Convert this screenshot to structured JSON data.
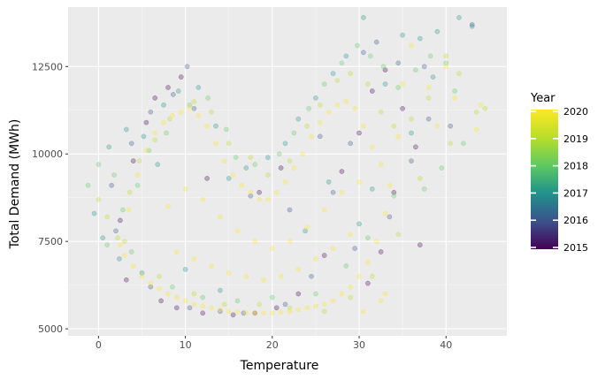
{
  "chart_data": {
    "type": "scatter",
    "title": "",
    "xlabel": "Temperature",
    "ylabel": "Total Demand (MWh)",
    "xlim": [
      -3.5,
      47
    ],
    "ylim": [
      4800,
      14200
    ],
    "x_ticks": [
      0,
      10,
      20,
      30,
      40
    ],
    "x_tick_labels": [
      "0",
      "10",
      "20",
      "30",
      "40"
    ],
    "y_ticks": [
      5000,
      7500,
      10000,
      12500
    ],
    "y_tick_labels": [
      "5000",
      "7500",
      "10000",
      "12500"
    ],
    "grid": true,
    "point_alpha": 0.3,
    "legend": {
      "title": "Year",
      "placement": "right",
      "type": "colorbar",
      "range": [
        2015,
        2020
      ],
      "ticks": [
        "2015",
        "2016",
        "2017",
        "2018",
        "2019",
        "2020"
      ],
      "colors": [
        "#440154",
        "#3b528b",
        "#21918c",
        "#5ec962",
        "#b8de29",
        "#fde725"
      ]
    },
    "series": [
      {
        "year": 2015,
        "color": "#440154",
        "points": [
          [
            3.2,
            6400
          ],
          [
            4.0,
            9800
          ],
          [
            5.5,
            10900
          ],
          [
            6.5,
            11600
          ],
          [
            8.0,
            11900
          ],
          [
            9.5,
            12200
          ],
          [
            7.2,
            5800
          ],
          [
            9.0,
            5600
          ],
          [
            12.0,
            5450
          ],
          [
            15.5,
            5400
          ],
          [
            18.0,
            5450
          ],
          [
            20.5,
            5600
          ],
          [
            23.0,
            6000
          ],
          [
            26.0,
            7100
          ],
          [
            28.0,
            9500
          ],
          [
            30.0,
            10600
          ],
          [
            31.5,
            11800
          ],
          [
            33.0,
            12400
          ],
          [
            35.0,
            11300
          ],
          [
            36.5,
            10200
          ],
          [
            34.0,
            8900
          ],
          [
            32.5,
            7200
          ],
          [
            31.0,
            6300
          ],
          [
            12.5,
            9300
          ],
          [
            18.5,
            8900
          ],
          [
            21.0,
            9600
          ],
          [
            2.5,
            8100
          ],
          [
            37.0,
            7400
          ]
        ]
      },
      {
        "year": 2016,
        "color": "#3b528b",
        "points": [
          [
            2.0,
            7800
          ],
          [
            3.8,
            10300
          ],
          [
            6.0,
            11200
          ],
          [
            8.6,
            11700
          ],
          [
            10.2,
            12500
          ],
          [
            11.0,
            11300
          ],
          [
            6.0,
            6200
          ],
          [
            10.5,
            5600
          ],
          [
            14.0,
            5500
          ],
          [
            16.7,
            5450
          ],
          [
            21.5,
            5700
          ],
          [
            24.5,
            6500
          ],
          [
            27.0,
            8900
          ],
          [
            29.0,
            10300
          ],
          [
            30.5,
            12900
          ],
          [
            32.0,
            13200
          ],
          [
            34.5,
            12600
          ],
          [
            37.5,
            12500
          ],
          [
            38.0,
            11000
          ],
          [
            36.0,
            9800
          ],
          [
            33.5,
            8200
          ],
          [
            17.5,
            8800
          ],
          [
            22.0,
            8400
          ],
          [
            25.5,
            10500
          ],
          [
            29.5,
            7300
          ],
          [
            1.5,
            9100
          ],
          [
            43.0,
            13700
          ],
          [
            40.5,
            10800
          ]
        ]
      },
      {
        "year": 2017,
        "color": "#21918c",
        "points": [
          [
            -0.5,
            8300
          ],
          [
            0.5,
            7600
          ],
          [
            1.2,
            10200
          ],
          [
            3.2,
            10700
          ],
          [
            5.2,
            10500
          ],
          [
            7.5,
            11400
          ],
          [
            9.2,
            11800
          ],
          [
            11.5,
            11900
          ],
          [
            13.5,
            10800
          ],
          [
            6.8,
            9700
          ],
          [
            15.0,
            9300
          ],
          [
            17.0,
            9600
          ],
          [
            19.5,
            9900
          ],
          [
            21.5,
            10300
          ],
          [
            23.0,
            11000
          ],
          [
            25.0,
            11600
          ],
          [
            27.0,
            12300
          ],
          [
            28.5,
            12800
          ],
          [
            30.5,
            13900
          ],
          [
            33.0,
            12000
          ],
          [
            35.0,
            13400
          ],
          [
            37.0,
            13300
          ],
          [
            39.0,
            13500
          ],
          [
            41.5,
            13900
          ],
          [
            43.0,
            13650
          ],
          [
            38.5,
            12200
          ],
          [
            36.0,
            10600
          ],
          [
            31.5,
            9000
          ],
          [
            30.0,
            8000
          ],
          [
            26.5,
            9200
          ],
          [
            23.8,
            7800
          ],
          [
            14.0,
            6100
          ],
          [
            10.0,
            6700
          ],
          [
            5.0,
            6600
          ],
          [
            2.4,
            7000
          ]
        ]
      },
      {
        "year": 2018,
        "color": "#5ec962",
        "points": [
          [
            -1.2,
            9100
          ],
          [
            0.0,
            9700
          ],
          [
            1.8,
            9400
          ],
          [
            2.8,
            8400
          ],
          [
            4.5,
            9100
          ],
          [
            5.8,
            10100
          ],
          [
            7.8,
            10600
          ],
          [
            10.5,
            11400
          ],
          [
            12.6,
            11600
          ],
          [
            14.7,
            10700
          ],
          [
            15.8,
            9900
          ],
          [
            18.0,
            9700
          ],
          [
            20.8,
            10000
          ],
          [
            22.5,
            10600
          ],
          [
            24.2,
            11300
          ],
          [
            26.0,
            12000
          ],
          [
            28.0,
            12600
          ],
          [
            29.8,
            13100
          ],
          [
            31.3,
            12800
          ],
          [
            32.8,
            12500
          ],
          [
            34.5,
            11900
          ],
          [
            36.5,
            12400
          ],
          [
            38.2,
            12800
          ],
          [
            40.0,
            12600
          ],
          [
            41.0,
            11800
          ],
          [
            42.0,
            10300
          ],
          [
            39.5,
            9600
          ],
          [
            37.5,
            9000
          ],
          [
            34.0,
            8800
          ],
          [
            31.0,
            7600
          ],
          [
            28.5,
            6800
          ],
          [
            25.0,
            6000
          ],
          [
            20.0,
            5900
          ],
          [
            16.0,
            5800
          ],
          [
            12.0,
            5900
          ],
          [
            8.5,
            6200
          ],
          [
            3.8,
            7200
          ],
          [
            1.0,
            7400
          ]
        ]
      },
      {
        "year": 2019,
        "color": "#b8de29",
        "points": [
          [
            0.0,
            8700
          ],
          [
            1.0,
            8200
          ],
          [
            2.2,
            7600
          ],
          [
            3.6,
            8900
          ],
          [
            4.7,
            9800
          ],
          [
            6.5,
            10400
          ],
          [
            8.2,
            11000
          ],
          [
            11.0,
            11500
          ],
          [
            13.0,
            11200
          ],
          [
            15.0,
            10300
          ],
          [
            17.5,
            9900
          ],
          [
            19.5,
            9400
          ],
          [
            22.0,
            9800
          ],
          [
            24.0,
            10800
          ],
          [
            25.5,
            11400
          ],
          [
            27.5,
            12100
          ],
          [
            29.0,
            12300
          ],
          [
            31.0,
            12000
          ],
          [
            32.5,
            11200
          ],
          [
            34.0,
            10800
          ],
          [
            36.0,
            11000
          ],
          [
            38.0,
            11600
          ],
          [
            40.0,
            12800
          ],
          [
            41.5,
            12300
          ],
          [
            43.5,
            11200
          ],
          [
            44.5,
            11300
          ],
          [
            40.5,
            10300
          ],
          [
            37.0,
            9300
          ],
          [
            34.5,
            7700
          ],
          [
            31.5,
            6500
          ],
          [
            29.0,
            5900
          ],
          [
            26.0,
            5500
          ],
          [
            22.0,
            5600
          ],
          [
            18.5,
            5700
          ],
          [
            14.5,
            5700
          ],
          [
            11.0,
            6000
          ],
          [
            7.0,
            6500
          ],
          [
            3.0,
            7500
          ]
        ]
      },
      {
        "year": 2020,
        "color": "#fde725",
        "points": [
          [
            2.5,
            7400
          ],
          [
            3.5,
            8400
          ],
          [
            4.5,
            9400
          ],
          [
            5.5,
            10100
          ],
          [
            6.5,
            10600
          ],
          [
            7.5,
            10900
          ],
          [
            8.5,
            11100
          ],
          [
            9.5,
            11200
          ],
          [
            10.5,
            11300
          ],
          [
            11.5,
            11100
          ],
          [
            12.5,
            10800
          ],
          [
            13.5,
            10300
          ],
          [
            14.5,
            9800
          ],
          [
            15.5,
            9400
          ],
          [
            16.5,
            9100
          ],
          [
            17.5,
            8900
          ],
          [
            18.5,
            8700
          ],
          [
            19.5,
            8700
          ],
          [
            20.5,
            8900
          ],
          [
            21.5,
            9200
          ],
          [
            22.5,
            9600
          ],
          [
            23.5,
            10000
          ],
          [
            24.5,
            10500
          ],
          [
            25.5,
            10900
          ],
          [
            26.5,
            11200
          ],
          [
            27.5,
            11400
          ],
          [
            28.5,
            11500
          ],
          [
            29.5,
            11300
          ],
          [
            30.5,
            10800
          ],
          [
            31.5,
            10200
          ],
          [
            32.5,
            9700
          ],
          [
            33.5,
            9100
          ],
          [
            33.0,
            8300
          ],
          [
            32.0,
            7500
          ],
          [
            31.0,
            6900
          ],
          [
            30.0,
            6500
          ],
          [
            29.0,
            6200
          ],
          [
            28.0,
            6000
          ],
          [
            27.0,
            5800
          ],
          [
            26.0,
            5700
          ],
          [
            25.0,
            5650
          ],
          [
            24.0,
            5600
          ],
          [
            23.0,
            5550
          ],
          [
            22.0,
            5500
          ],
          [
            21.0,
            5480
          ],
          [
            20.0,
            5450
          ],
          [
            19.0,
            5450
          ],
          [
            18.0,
            5450
          ],
          [
            17.0,
            5460
          ],
          [
            16.0,
            5480
          ],
          [
            15.0,
            5500
          ],
          [
            14.0,
            5550
          ],
          [
            13.0,
            5600
          ],
          [
            12.0,
            5650
          ],
          [
            11.0,
            5700
          ],
          [
            10.0,
            5800
          ],
          [
            9.0,
            5900
          ],
          [
            8.0,
            6000
          ],
          [
            7.0,
            6150
          ],
          [
            6.0,
            6300
          ],
          [
            5.0,
            6500
          ],
          [
            4.0,
            6800
          ],
          [
            3.0,
            7100
          ],
          [
            8.0,
            8500
          ],
          [
            10.0,
            9000
          ],
          [
            12.0,
            8700
          ],
          [
            14.0,
            8200
          ],
          [
            16.0,
            7800
          ],
          [
            18.0,
            7500
          ],
          [
            20.0,
            7300
          ],
          [
            22.0,
            7500
          ],
          [
            24.0,
            7900
          ],
          [
            26.0,
            8400
          ],
          [
            28.0,
            8900
          ],
          [
            30.0,
            9200
          ],
          [
            9.0,
            7200
          ],
          [
            11.0,
            7000
          ],
          [
            13.0,
            6800
          ],
          [
            15.0,
            6600
          ],
          [
            17.0,
            6500
          ],
          [
            19.0,
            6400
          ],
          [
            21.0,
            6500
          ],
          [
            23.0,
            6700
          ],
          [
            25.0,
            7000
          ],
          [
            27.0,
            7300
          ],
          [
            29.0,
            7700
          ],
          [
            35.0,
            12000
          ],
          [
            38.0,
            11900
          ],
          [
            40.0,
            12500
          ],
          [
            41.0,
            11600
          ],
          [
            44.0,
            11400
          ],
          [
            36.0,
            13100
          ],
          [
            33.0,
            6000
          ],
          [
            32.5,
            5800
          ],
          [
            30.5,
            5500
          ],
          [
            34.5,
            10500
          ],
          [
            39.0,
            10800
          ],
          [
            43.5,
            10700
          ]
        ]
      }
    ]
  }
}
